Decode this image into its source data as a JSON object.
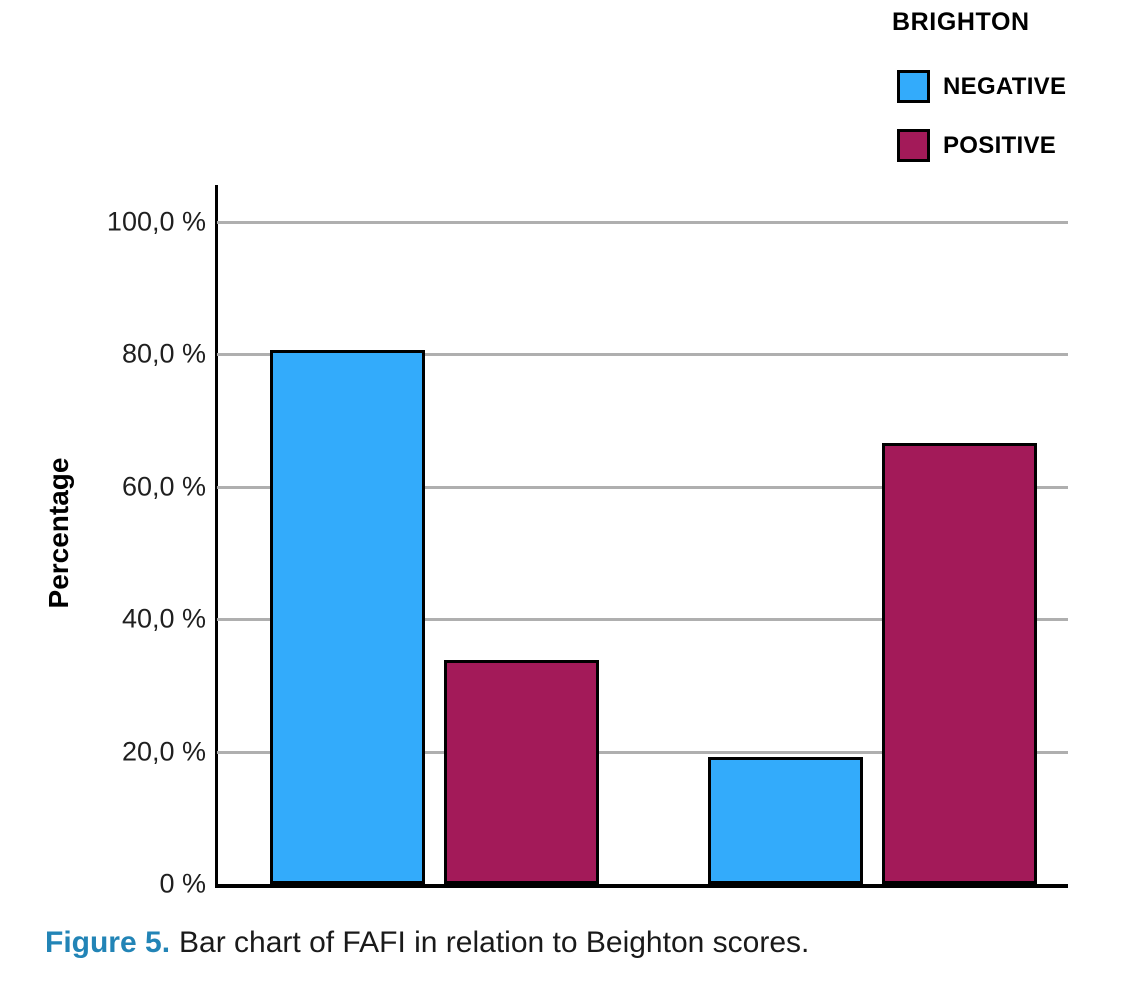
{
  "figure": {
    "caption_label": "Figure 5.",
    "caption_text": "Bar chart of FAFI in relation to Beighton scores."
  },
  "legend": {
    "title": "BRIGHTON",
    "items": [
      {
        "label": "NEGATIVE",
        "color": "#33abfb"
      },
      {
        "label": "POSITIVE",
        "color": "#a31a59"
      }
    ]
  },
  "chart_data": {
    "type": "bar",
    "title": "",
    "xlabel": "",
    "ylabel": "Percentage",
    "categories": [
      "",
      ""
    ],
    "series": [
      {
        "name": "NEGATIVE",
        "color": "#33abfb",
        "values": [
          80.7,
          19.2
        ]
      },
      {
        "name": "POSITIVE",
        "color": "#a31a59",
        "values": [
          33.8,
          66.6
        ]
      }
    ],
    "ylim": [
      0,
      100
    ],
    "yticks": [
      {
        "value": 100,
        "label": "100,0 %"
      },
      {
        "value": 80,
        "label": "80,0 %"
      },
      {
        "value": 60,
        "label": "60,0 %"
      },
      {
        "value": 40,
        "label": "40,0 %"
      },
      {
        "value": 20,
        "label": "20,0 %"
      },
      {
        "value": 0,
        "label": "0 %"
      }
    ],
    "grid": true,
    "legend_title": "BRIGHTON",
    "legend_position": "top-right"
  }
}
